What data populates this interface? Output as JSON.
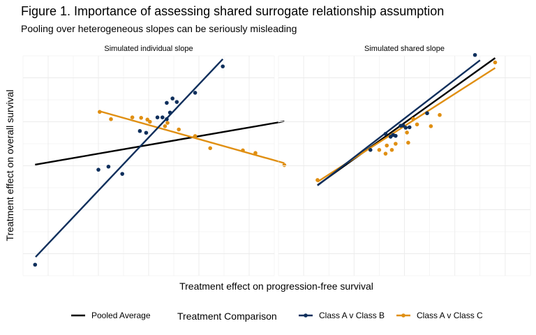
{
  "header": {
    "title": "Figure 1. Importance of assessing shared surrogate relationship assumption",
    "subtitle": "Pooling over heterogeneous slopes can be seriously misleading"
  },
  "colors": {
    "pooled": "#000000",
    "class_b": "#0e2f5c",
    "class_c": "#e08f12",
    "grid": "#ebebeb"
  },
  "chart_data": {
    "type": "scatter",
    "xlabel": "Treatment effect on progression-free survival",
    "ylabel": "Treatment effect on overall survival",
    "xlim": [
      0,
      10
    ],
    "ylim": [
      0,
      10
    ],
    "grid": true,
    "legend_position": "bottom",
    "legend": {
      "pooled_label": "Pooled Average",
      "title": "Treatment Comparison",
      "series_labels": [
        "Class A v Class B",
        "Class A v Class C"
      ]
    },
    "panels": [
      {
        "title": "Simulated individual slope",
        "series": [
          {
            "name": "Class A v Class B",
            "points": [
              [
                0.48,
                0.5
              ],
              [
                3.0,
                4.82
              ],
              [
                3.4,
                4.96
              ],
              [
                3.95,
                4.63
              ],
              [
                4.9,
                6.5
              ],
              [
                4.65,
                6.58
              ],
              [
                5.35,
                7.2
              ],
              [
                5.55,
                7.2
              ],
              [
                5.72,
                7.12
              ],
              [
                5.85,
                7.42
              ],
              [
                5.72,
                7.86
              ],
              [
                5.95,
                8.06
              ],
              [
                6.12,
                7.9
              ],
              [
                6.85,
                8.32
              ],
              [
                7.95,
                9.52
              ]
            ],
            "line": [
              [
                0.5,
                0.85
              ],
              [
                7.95,
                9.85
              ]
            ]
          },
          {
            "name": "Class A v Class C",
            "points": [
              [
                3.05,
                7.45
              ],
              [
                3.5,
                7.12
              ],
              [
                4.35,
                7.2
              ],
              [
                4.7,
                7.18
              ],
              [
                4.95,
                7.1
              ],
              [
                5.05,
                7.0
              ],
              [
                5.65,
                6.8
              ],
              [
                5.75,
                6.95
              ],
              [
                6.2,
                6.65
              ],
              [
                6.85,
                6.35
              ],
              [
                7.45,
                5.8
              ],
              [
                8.75,
                5.7
              ],
              [
                9.25,
                5.58
              ],
              [
                10.4,
                5.03
              ]
            ],
            "line": [
              [
                3.05,
                7.48
              ],
              [
                10.4,
                5.12
              ]
            ]
          },
          {
            "name": "Pooled Average",
            "points": [],
            "line": [
              [
                0.48,
                5.05
              ],
              [
                10.4,
                7.02
              ]
            ]
          }
        ]
      },
      {
        "title": "Simulated shared slope",
        "series": [
          {
            "name": "Class A v Class B",
            "points": [
              [
                3.65,
                5.72
              ],
              [
                4.25,
                6.45
              ],
              [
                4.45,
                6.32
              ],
              [
                4.55,
                6.4
              ],
              [
                4.65,
                6.36
              ],
              [
                4.85,
                6.82
              ],
              [
                4.95,
                6.83
              ],
              [
                5.05,
                6.73
              ],
              [
                5.2,
                6.75
              ],
              [
                5.9,
                7.39
              ],
              [
                7.8,
                10.04
              ]
            ],
            "line": [
              [
                1.55,
                4.1
              ],
              [
                8.0,
                9.8
              ]
            ]
          },
          {
            "name": "Class A v Class C",
            "points": [
              [
                1.55,
                4.35
              ],
              [
                4.0,
                5.72
              ],
              [
                4.25,
                5.55
              ],
              [
                4.3,
                5.92
              ],
              [
                4.5,
                5.72
              ],
              [
                4.65,
                6.0
              ],
              [
                5.1,
                6.51
              ],
              [
                5.15,
                6.05
              ],
              [
                5.35,
                7.13
              ],
              [
                5.5,
                6.88
              ],
              [
                6.05,
                6.8
              ],
              [
                6.4,
                7.31
              ],
              [
                8.6,
                9.7
              ]
            ],
            "line": [
              [
                1.55,
                4.27
              ],
              [
                8.6,
                9.45
              ]
            ]
          },
          {
            "name": "Pooled Average",
            "points": [],
            "line": [
              [
                1.55,
                4.12
              ],
              [
                8.6,
                9.9
              ]
            ]
          }
        ]
      }
    ]
  }
}
